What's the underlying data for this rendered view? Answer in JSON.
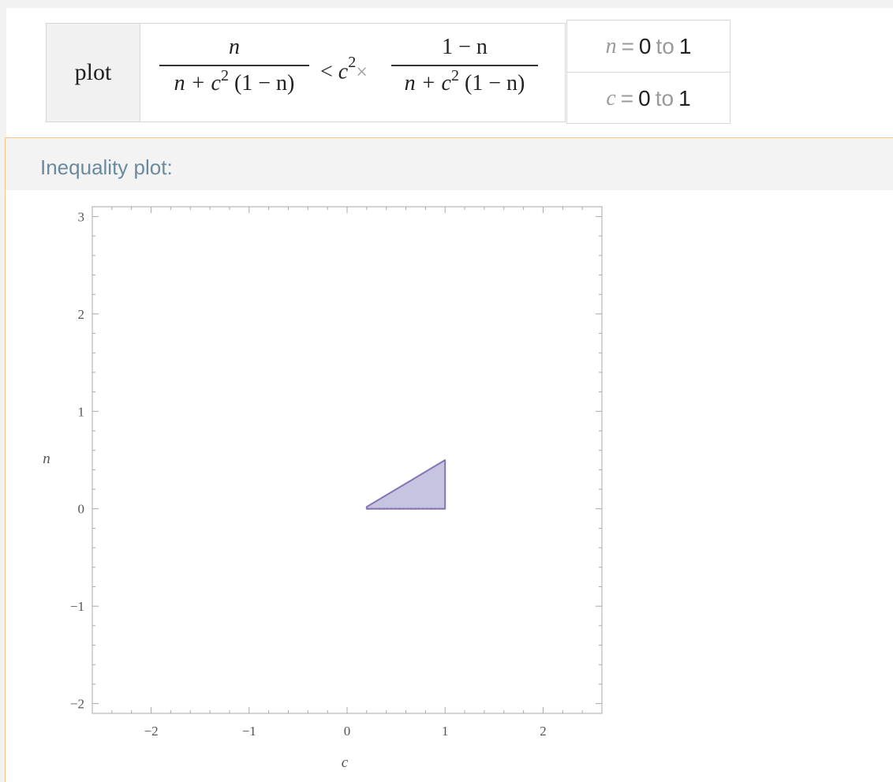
{
  "input": {
    "function_label": "plot",
    "inequality": {
      "lhs_num": "n",
      "lhs_den": [
        "n + c",
        "2",
        " (1 − n)"
      ],
      "relation": "<",
      "coef_base": "c",
      "coef_exp": "2",
      "times": "×",
      "rhs_num": "1 − n",
      "rhs_den": [
        "n + c",
        "2",
        " (1 − n)"
      ]
    },
    "ranges": [
      {
        "var": "n",
        "eq": "=",
        "from": "0",
        "to_word": "to",
        "to": "1"
      },
      {
        "var": "c",
        "eq": "=",
        "from": "0",
        "to_word": "to",
        "to": "1"
      }
    ]
  },
  "pod": {
    "title": "Inequality plot:"
  },
  "chart_data": {
    "type": "area",
    "title": "",
    "xlabel": "c",
    "ylabel": "n",
    "xlim": [
      -2.6,
      2.6
    ],
    "ylim": [
      -2.1,
      3.1
    ],
    "xticks": [
      -2,
      -1,
      0,
      1,
      2
    ],
    "yticks": [
      -2,
      -1,
      0,
      1,
      2,
      3
    ],
    "grid": false,
    "region": [
      [
        0.2,
        0.02
      ],
      [
        1.0,
        0.5
      ],
      [
        1.0,
        0.0
      ],
      [
        0.2,
        0.0
      ]
    ],
    "fill_color": "#c7c4e2",
    "edge_color": "#8674b5"
  }
}
